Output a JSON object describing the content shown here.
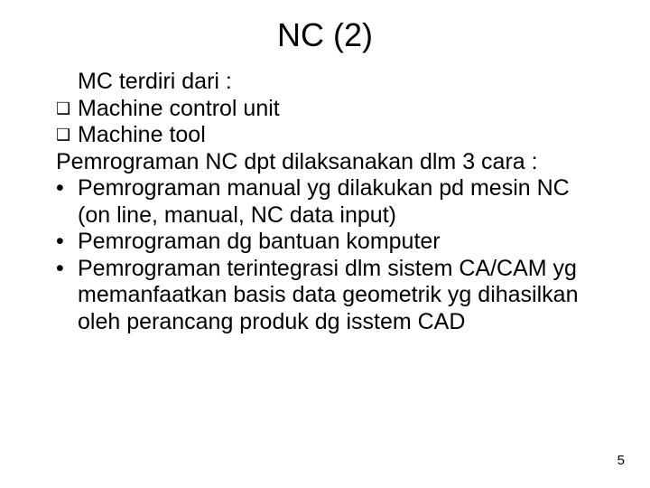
{
  "title": "NC (2)",
  "body": {
    "intro": "MC terdiri dari :",
    "box_items": [
      "Machine control unit",
      "Machine tool"
    ],
    "intro2": "Pemrograman NC dpt dilaksanakan dlm 3 cara :",
    "bullets": [
      "Pemrograman manual yg dilakukan pd mesin NC (on line, manual, NC data input)",
      "Pemrograman dg bantuan komputer",
      "Pemrograman terintegrasi dlm sistem CA/CAM yg memanfaatkan basis data geometrik yg dihasilkan oleh perancang produk dg isstem CAD"
    ]
  },
  "page_number": "5",
  "style": {
    "background_color": "#ffffff",
    "text_color": "#000000",
    "title_fontsize": 36,
    "body_fontsize": 25,
    "pagenum_fontsize": 15,
    "square_marker": "❑",
    "dot_marker": "•"
  }
}
